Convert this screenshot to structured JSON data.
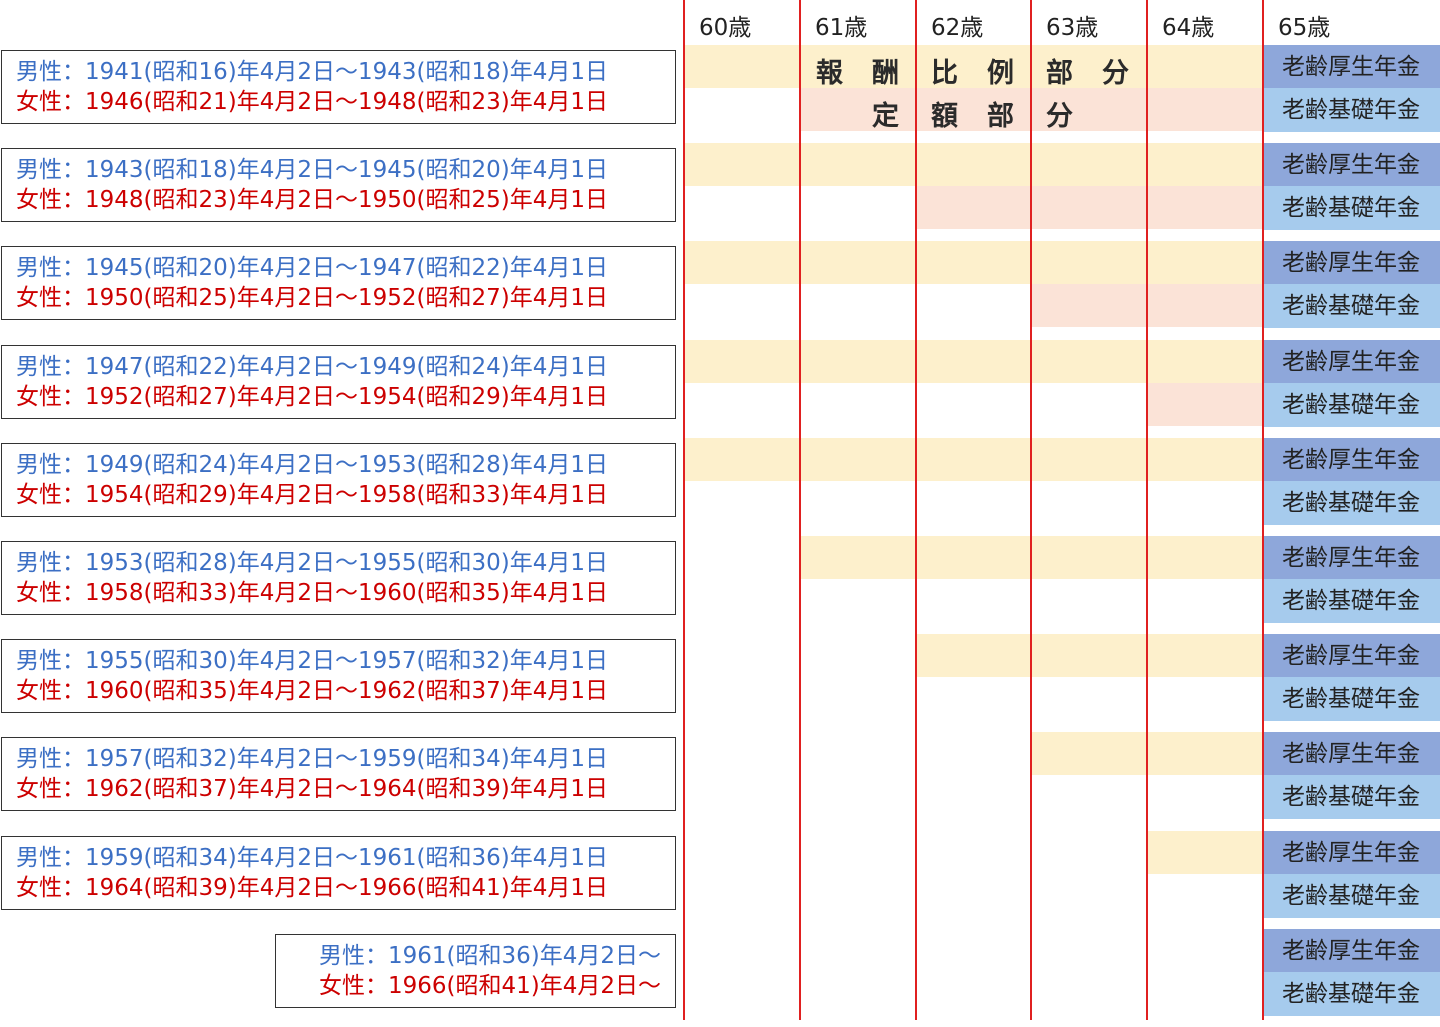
{
  "ages": [
    "60歳",
    "61歳",
    "62歳",
    "63歳",
    "64歳",
    "65歳"
  ],
  "band_labels": {
    "hirei": [
      "報",
      "酬",
      "比",
      "例",
      "部",
      "分"
    ],
    "teigaku": [
      "定",
      "額",
      "部",
      "分"
    ]
  },
  "rows": [
    {
      "male": "男性：1941(昭和16)年4月2日〜1943(昭和18)年4月1日",
      "female": "女性：1946(昭和21)年4月2日〜1948(昭和23)年4月1日",
      "hirei_from_age": 60,
      "teigaku_from_age": 61
    },
    {
      "male": "男性：1943(昭和18)年4月2日〜1945(昭和20)年4月1日",
      "female": "女性：1948(昭和23)年4月2日〜1950(昭和25)年4月1日",
      "hirei_from_age": 60,
      "teigaku_from_age": 62
    },
    {
      "male": "男性：1945(昭和20)年4月2日〜1947(昭和22)年4月1日",
      "female": "女性：1950(昭和25)年4月2日〜1952(昭和27)年4月1日",
      "hirei_from_age": 60,
      "teigaku_from_age": 63
    },
    {
      "male": "男性：1947(昭和22)年4月2日〜1949(昭和24)年4月1日",
      "female": "女性：1952(昭和27)年4月2日〜1954(昭和29)年4月1日",
      "hirei_from_age": 60,
      "teigaku_from_age": 64
    },
    {
      "male": "男性：1949(昭和24)年4月2日〜1953(昭和28)年4月1日",
      "female": "女性：1954(昭和29)年4月2日〜1958(昭和33)年4月1日",
      "hirei_from_age": 60,
      "teigaku_from_age": 65
    },
    {
      "male": "男性：1953(昭和28)年4月2日〜1955(昭和30)年4月1日",
      "female": "女性：1958(昭和33)年4月2日〜1960(昭和35)年4月1日",
      "hirei_from_age": 61,
      "teigaku_from_age": 65
    },
    {
      "male": "男性：1955(昭和30)年4月2日〜1957(昭和32)年4月1日",
      "female": "女性：1960(昭和35)年4月2日〜1962(昭和37)年4月1日",
      "hirei_from_age": 62,
      "teigaku_from_age": 65
    },
    {
      "male": "男性：1957(昭和32)年4月2日〜1959(昭和34)年4月1日",
      "female": "女性：1962(昭和37)年4月2日〜1964(昭和39)年4月1日",
      "hirei_from_age": 63,
      "teigaku_from_age": 65
    },
    {
      "male": "男性：1959(昭和34)年4月2日〜1961(昭和36)年4月1日",
      "female": "女性：1964(昭和39)年4月2日〜1966(昭和41)年4月1日",
      "hirei_from_age": 64,
      "teigaku_from_age": 65
    },
    {
      "male": "男性：1961(昭和36)年4月2日〜",
      "female": "女性：1966(昭和41)年4月2日〜",
      "hirei_from_age": 65,
      "teigaku_from_age": 65
    }
  ],
  "pension_labels": {
    "kosei": "老齢厚生年金",
    "kiso": "老齢基礎年金"
  },
  "colors": {
    "male_text": "#3c6fc4",
    "female_text": "#cc0000",
    "hirei_band": "#fdf0cc",
    "teigaku_band": "#fbe3d7",
    "kosei_cell": "#8ea7da",
    "kiso_cell": "#a6cbed",
    "divider": "#e02020"
  }
}
